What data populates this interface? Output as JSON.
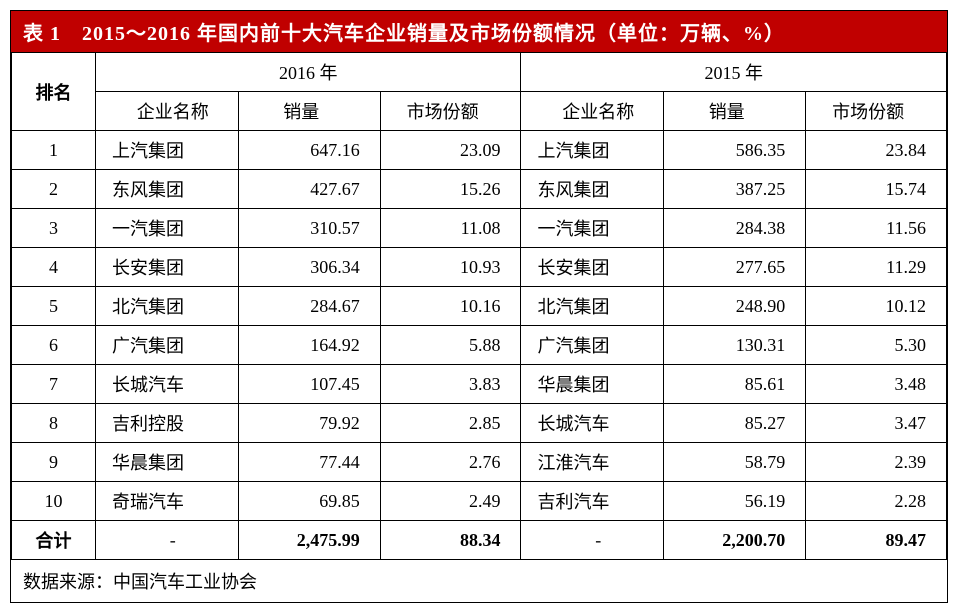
{
  "title": "表 1　2015～2016 年国内前十大汽车企业销量及市场份额情况（单位：万辆、%）",
  "source": "数据来源：中国汽车工业协会",
  "colors": {
    "title_bg": "#c00000",
    "title_fg": "#ffffff",
    "border": "#000000",
    "bg": "#ffffff"
  },
  "fontsize": {
    "title": 20,
    "cell": 18,
    "source": 18
  },
  "headers": {
    "rank": "排名",
    "year2016": "2016 年",
    "year2015": "2015 年",
    "company": "企业名称",
    "sales": "销量",
    "share": "市场份额"
  },
  "columns": {
    "rank_width": 88,
    "name_width": 150,
    "num_width": 146,
    "name_align": "left",
    "num_align": "right",
    "rank_align": "center"
  },
  "rows": [
    {
      "rank": "1",
      "c16": "上汽集团",
      "s16": "647.16",
      "m16": "23.09",
      "c15": "上汽集团",
      "s15": "586.35",
      "m15": "23.84"
    },
    {
      "rank": "2",
      "c16": "东风集团",
      "s16": "427.67",
      "m16": "15.26",
      "c15": "东风集团",
      "s15": "387.25",
      "m15": "15.74"
    },
    {
      "rank": "3",
      "c16": "一汽集团",
      "s16": "310.57",
      "m16": "11.08",
      "c15": "一汽集团",
      "s15": "284.38",
      "m15": "11.56"
    },
    {
      "rank": "4",
      "c16": "长安集团",
      "s16": "306.34",
      "m16": "10.93",
      "c15": "长安集团",
      "s15": "277.65",
      "m15": "11.29"
    },
    {
      "rank": "5",
      "c16": "北汽集团",
      "s16": "284.67",
      "m16": "10.16",
      "c15": "北汽集团",
      "s15": "248.90",
      "m15": "10.12"
    },
    {
      "rank": "6",
      "c16": "广汽集团",
      "s16": "164.92",
      "m16": "5.88",
      "c15": "广汽集团",
      "s15": "130.31",
      "m15": "5.30"
    },
    {
      "rank": "7",
      "c16": "长城汽车",
      "s16": "107.45",
      "m16": "3.83",
      "c15": "华晨集团",
      "s15": "85.61",
      "m15": "3.48"
    },
    {
      "rank": "8",
      "c16": "吉利控股",
      "s16": "79.92",
      "m16": "2.85",
      "c15": "长城汽车",
      "s15": "85.27",
      "m15": "3.47"
    },
    {
      "rank": "9",
      "c16": "华晨集团",
      "s16": "77.44",
      "m16": "2.76",
      "c15": "江淮汽车",
      "s15": "58.79",
      "m15": "2.39"
    },
    {
      "rank": "10",
      "c16": "奇瑞汽车",
      "s16": "69.85",
      "m16": "2.49",
      "c15": "吉利汽车",
      "s15": "56.19",
      "m15": "2.28"
    }
  ],
  "total": {
    "label": "合计",
    "c16": "-",
    "s16": "2,475.99",
    "m16": "88.34",
    "c15": "-",
    "s15": "2,200.70",
    "m15": "89.47"
  }
}
